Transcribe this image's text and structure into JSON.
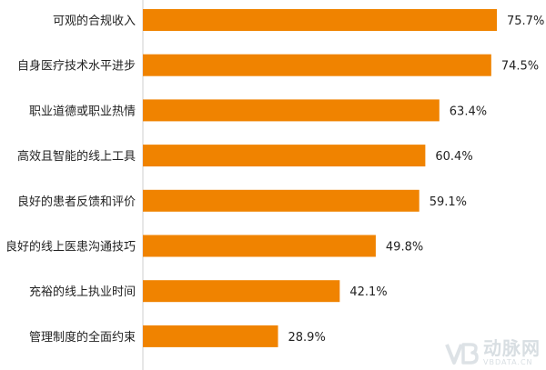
{
  "chart_data": {
    "type": "bar",
    "orientation": "horizontal",
    "title": "",
    "xlabel": "",
    "ylabel": "",
    "xlim": [
      0,
      80
    ],
    "grid": false,
    "legend": "none",
    "bar_color": "#F08300",
    "categories": [
      "可观的合规收入",
      "自身医疗技术水平进步",
      "职业道德或职业热情",
      "高效且智能的线上工具",
      "良好的患者反馈和评价",
      "良好的线上医患沟通技巧",
      "充裕的线上执业时间",
      "管理制度的全面约束"
    ],
    "values": [
      75.7,
      74.5,
      63.4,
      60.4,
      59.1,
      49.8,
      42.1,
      28.9
    ],
    "value_labels": [
      "75.7%",
      "74.5%",
      "63.4%",
      "60.4%",
      "59.1%",
      "49.8%",
      "42.1%",
      "28.9%"
    ]
  },
  "watermark": {
    "logo_icon": "vb-logo-icon",
    "text_cn": "动脉网",
    "text_en": "VBDATA.CN"
  }
}
